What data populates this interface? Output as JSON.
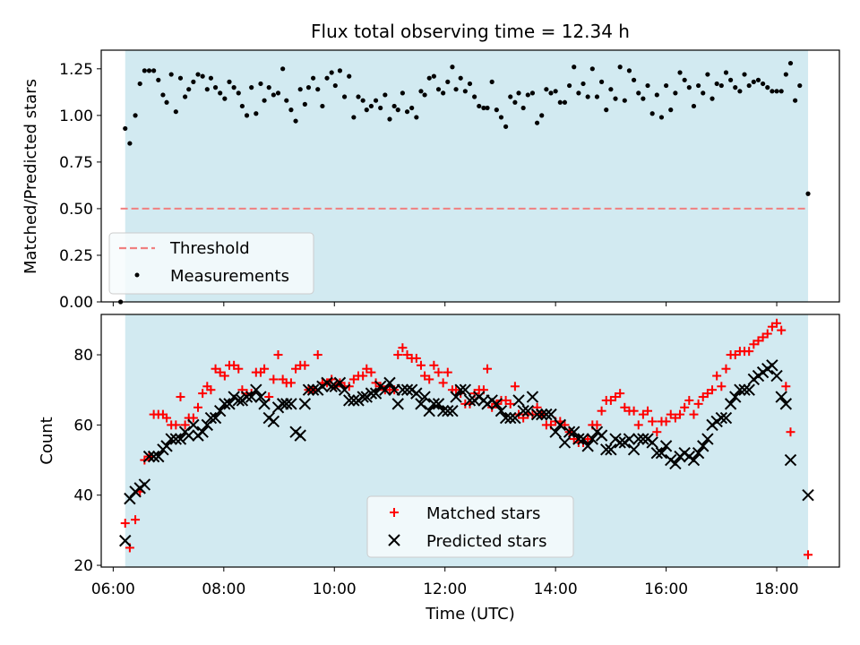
{
  "chart_data": [
    {
      "type": "scatter",
      "title": "Flux total observing time = 12.34 h",
      "xlabel": "",
      "ylabel": "Matched/Predicted stars",
      "xlim": [
        "05:47",
        "19:08"
      ],
      "ylim": [
        0,
        1.35
      ],
      "yticks": [
        "0.00",
        "0.25",
        "0.50",
        "0.75",
        "1.00",
        "1.25"
      ],
      "shaded_span": [
        "06:13",
        "18:34"
      ],
      "shade_color": "#add8e6",
      "threshold": {
        "name": "Threshold",
        "value": 0.5,
        "color": "#f08080"
      },
      "measurements_name": "Measurements",
      "legend_position": "lower-left",
      "points": [
        [
          "06:08",
          0.0
        ],
        [
          "06:13",
          0.93
        ],
        [
          "06:18",
          0.85
        ],
        [
          "06:24",
          1.0
        ],
        [
          "06:29",
          1.17
        ],
        [
          "06:34",
          1.24
        ],
        [
          "06:39",
          1.24
        ],
        [
          "06:44",
          1.24
        ],
        [
          "06:49",
          1.19
        ],
        [
          "06:54",
          1.11
        ],
        [
          "06:58",
          1.07
        ],
        [
          "07:03",
          1.22
        ],
        [
          "07:08",
          1.02
        ],
        [
          "07:13",
          1.2
        ],
        [
          "07:18",
          1.1
        ],
        [
          "07:22",
          1.14
        ],
        [
          "07:27",
          1.18
        ],
        [
          "07:32",
          1.22
        ],
        [
          "07:37",
          1.21
        ],
        [
          "07:42",
          1.14
        ],
        [
          "07:46",
          1.2
        ],
        [
          "07:51",
          1.15
        ],
        [
          "07:56",
          1.12
        ],
        [
          "08:01",
          1.09
        ],
        [
          "08:06",
          1.18
        ],
        [
          "08:11",
          1.15
        ],
        [
          "08:16",
          1.12
        ],
        [
          "08:20",
          1.05
        ],
        [
          "08:25",
          1.0
        ],
        [
          "08:30",
          1.15
        ],
        [
          "08:35",
          1.01
        ],
        [
          "08:40",
          1.17
        ],
        [
          "08:44",
          1.08
        ],
        [
          "08:49",
          1.15
        ],
        [
          "08:54",
          1.11
        ],
        [
          "08:59",
          1.12
        ],
        [
          "09:04",
          1.25
        ],
        [
          "09:08",
          1.08
        ],
        [
          "09:13",
          1.03
        ],
        [
          "09:18",
          0.97
        ],
        [
          "09:23",
          1.14
        ],
        [
          "09:28",
          1.06
        ],
        [
          "09:32",
          1.15
        ],
        [
          "09:37",
          1.2
        ],
        [
          "09:42",
          1.14
        ],
        [
          "09:47",
          1.05
        ],
        [
          "09:52",
          1.2
        ],
        [
          "09:57",
          1.23
        ],
        [
          "10:01",
          1.16
        ],
        [
          "10:06",
          1.24
        ],
        [
          "10:11",
          1.1
        ],
        [
          "10:16",
          1.21
        ],
        [
          "10:21",
          0.99
        ],
        [
          "10:26",
          1.1
        ],
        [
          "10:31",
          1.08
        ],
        [
          "10:35",
          1.03
        ],
        [
          "10:40",
          1.05
        ],
        [
          "10:45",
          1.08
        ],
        [
          "10:50",
          1.04
        ],
        [
          "10:55",
          1.11
        ],
        [
          "11:00",
          0.98
        ],
        [
          "11:05",
          1.05
        ],
        [
          "11:09",
          1.03
        ],
        [
          "11:14",
          1.12
        ],
        [
          "11:19",
          1.02
        ],
        [
          "11:24",
          1.04
        ],
        [
          "11:29",
          0.99
        ],
        [
          "11:34",
          1.13
        ],
        [
          "11:38",
          1.11
        ],
        [
          "11:43",
          1.2
        ],
        [
          "11:48",
          1.21
        ],
        [
          "11:53",
          1.14
        ],
        [
          "11:58",
          1.12
        ],
        [
          "12:03",
          1.18
        ],
        [
          "12:08",
          1.26
        ],
        [
          "12:12",
          1.14
        ],
        [
          "12:17",
          1.2
        ],
        [
          "12:22",
          1.13
        ],
        [
          "12:27",
          1.17
        ],
        [
          "12:32",
          1.1
        ],
        [
          "12:37",
          1.05
        ],
        [
          "12:42",
          1.04
        ],
        [
          "12:46",
          1.04
        ],
        [
          "12:51",
          1.18
        ],
        [
          "12:56",
          1.03
        ],
        [
          "13:01",
          0.99
        ],
        [
          "13:06",
          0.94
        ],
        [
          "13:11",
          1.1
        ],
        [
          "13:16",
          1.07
        ],
        [
          "13:20",
          1.12
        ],
        [
          "13:25",
          1.04
        ],
        [
          "13:30",
          1.11
        ],
        [
          "13:35",
          1.12
        ],
        [
          "13:40",
          0.96
        ],
        [
          "13:45",
          1.0
        ],
        [
          "13:50",
          1.14
        ],
        [
          "13:55",
          1.12
        ],
        [
          "14:00",
          1.13
        ],
        [
          "14:05",
          1.07
        ],
        [
          "14:10",
          1.07
        ],
        [
          "14:15",
          1.16
        ],
        [
          "14:20",
          1.26
        ],
        [
          "14:25",
          1.12
        ],
        [
          "14:30",
          1.17
        ],
        [
          "14:35",
          1.1
        ],
        [
          "14:40",
          1.25
        ],
        [
          "14:45",
          1.1
        ],
        [
          "14:50",
          1.18
        ],
        [
          "14:55",
          1.03
        ],
        [
          "15:00",
          1.14
        ],
        [
          "15:05",
          1.09
        ],
        [
          "15:10",
          1.26
        ],
        [
          "15:15",
          1.08
        ],
        [
          "15:20",
          1.24
        ],
        [
          "15:25",
          1.19
        ],
        [
          "15:30",
          1.12
        ],
        [
          "15:35",
          1.09
        ],
        [
          "15:40",
          1.16
        ],
        [
          "15:45",
          1.01
        ],
        [
          "15:50",
          1.11
        ],
        [
          "15:55",
          0.99
        ],
        [
          "16:00",
          1.16
        ],
        [
          "16:05",
          1.03
        ],
        [
          "16:10",
          1.12
        ],
        [
          "16:15",
          1.23
        ],
        [
          "16:20",
          1.19
        ],
        [
          "16:25",
          1.15
        ],
        [
          "16:30",
          1.05
        ],
        [
          "16:35",
          1.16
        ],
        [
          "16:40",
          1.12
        ],
        [
          "16:45",
          1.22
        ],
        [
          "16:50",
          1.09
        ],
        [
          "16:55",
          1.17
        ],
        [
          "17:00",
          1.16
        ],
        [
          "17:05",
          1.23
        ],
        [
          "17:10",
          1.19
        ],
        [
          "17:15",
          1.15
        ],
        [
          "17:20",
          1.13
        ],
        [
          "17:25",
          1.22
        ],
        [
          "17:30",
          1.16
        ],
        [
          "17:35",
          1.18
        ],
        [
          "17:40",
          1.19
        ],
        [
          "17:45",
          1.17
        ],
        [
          "17:50",
          1.15
        ],
        [
          "17:55",
          1.13
        ],
        [
          "18:00",
          1.13
        ],
        [
          "18:05",
          1.13
        ],
        [
          "18:10",
          1.22
        ],
        [
          "18:15",
          1.28
        ],
        [
          "18:20",
          1.08
        ],
        [
          "18:25",
          1.16
        ],
        [
          "18:34",
          0.58
        ]
      ]
    },
    {
      "type": "scatter",
      "title": "",
      "xlabel": "Time (UTC)",
      "ylabel": "Count",
      "xlim": [
        "05:47",
        "19:08"
      ],
      "ylim": [
        19.5,
        91.5
      ],
      "xticks": [
        "06:00",
        "08:00",
        "10:00",
        "12:00",
        "14:00",
        "16:00",
        "18:00"
      ],
      "yticks": [
        "20",
        "40",
        "60",
        "80"
      ],
      "shaded_span": [
        "06:13",
        "18:34"
      ],
      "shade_color": "#add8e6",
      "legend_position": "lower-center",
      "series": [
        {
          "name": "Matched stars",
          "marker": "plus",
          "color": "#ff0000",
          "values": [
            32,
            25,
            33,
            41,
            50,
            51,
            63,
            63,
            63,
            62,
            60,
            60,
            68,
            60,
            62,
            62,
            65,
            69,
            71,
            70,
            76,
            75,
            74,
            77,
            77,
            76,
            70,
            69,
            69,
            75,
            75,
            76,
            68,
            73,
            80,
            73,
            72,
            72,
            76,
            77,
            77,
            70,
            70,
            80,
            72,
            72,
            73,
            71,
            72,
            71,
            71,
            73,
            74,
            74,
            76,
            75,
            72,
            71,
            70,
            70,
            70,
            80,
            82,
            80,
            79,
            79,
            77,
            74,
            73,
            77,
            75,
            72,
            75,
            70,
            70,
            69,
            66,
            66,
            69,
            70,
            70,
            76,
            65,
            66,
            67,
            67,
            66,
            71,
            63,
            62,
            63,
            63,
            65,
            63,
            60,
            60,
            61,
            61,
            60,
            58,
            56,
            55,
            55,
            56,
            60,
            60,
            64,
            67,
            67,
            68,
            69,
            65,
            64,
            64,
            60,
            63,
            64,
            61,
            58,
            61,
            61,
            63,
            62,
            63,
            65,
            67,
            63,
            66,
            68,
            69,
            70,
            74,
            71,
            76,
            80,
            80,
            81,
            81,
            81,
            83,
            84,
            85,
            86,
            88,
            89,
            87,
            71,
            58,
            23
          ]
        },
        {
          "name": "Predicted stars",
          "marker": "x",
          "color": "#000000",
          "values": [
            27,
            39,
            41,
            42,
            43,
            51,
            51,
            51,
            53,
            54,
            56,
            56,
            56,
            58,
            57,
            60,
            57,
            58,
            60,
            62,
            62,
            64,
            66,
            66,
            68,
            67,
            67,
            68,
            68,
            70,
            68,
            66,
            62,
            61,
            65,
            66,
            66,
            66,
            58,
            57,
            66,
            70,
            70,
            70,
            71,
            72,
            71,
            71,
            72,
            70,
            67,
            67,
            67,
            68,
            68,
            69,
            69,
            71,
            70,
            72,
            70,
            66,
            70,
            70,
            70,
            69,
            66,
            68,
            64,
            66,
            66,
            64,
            64,
            64,
            68,
            70,
            70,
            67,
            67,
            68,
            67,
            66,
            67,
            66,
            64,
            62,
            62,
            62,
            67,
            64,
            64,
            68,
            63,
            63,
            63,
            63,
            58,
            60,
            55,
            58,
            58,
            56,
            56,
            54,
            56,
            58,
            57,
            53,
            53,
            56,
            55,
            55,
            56,
            53,
            56,
            56,
            56,
            55,
            52,
            52,
            54,
            50,
            49,
            51,
            52,
            51,
            50,
            52,
            54,
            56,
            60,
            61,
            62,
            62,
            66,
            68,
            70,
            70,
            70,
            73,
            74,
            75,
            76,
            77,
            74,
            68,
            66,
            50,
            40
          ]
        }
      ],
      "x_times": [
        "06:13",
        "06:18",
        "06:24",
        "06:29",
        "06:34",
        "06:39",
        "06:44",
        "06:49",
        "06:54",
        "06:58",
        "07:03",
        "07:08",
        "07:13",
        "07:18",
        "07:22",
        "07:27",
        "07:32",
        "07:37",
        "07:42",
        "07:46",
        "07:51",
        "07:56",
        "08:01",
        "08:06",
        "08:11",
        "08:16",
        "08:20",
        "08:25",
        "08:30",
        "08:35",
        "08:40",
        "08:44",
        "08:49",
        "08:54",
        "08:59",
        "09:04",
        "09:08",
        "09:13",
        "09:18",
        "09:23",
        "09:28",
        "09:32",
        "09:37",
        "09:42",
        "09:47",
        "09:52",
        "09:57",
        "10:01",
        "10:06",
        "10:11",
        "10:16",
        "10:21",
        "10:26",
        "10:31",
        "10:35",
        "10:40",
        "10:45",
        "10:50",
        "10:55",
        "11:00",
        "11:05",
        "11:09",
        "11:14",
        "11:19",
        "11:24",
        "11:29",
        "11:34",
        "11:38",
        "11:43",
        "11:48",
        "11:53",
        "11:58",
        "12:03",
        "12:08",
        "12:12",
        "12:17",
        "12:22",
        "12:27",
        "12:32",
        "12:37",
        "12:42",
        "12:46",
        "12:51",
        "12:56",
        "13:01",
        "13:06",
        "13:11",
        "13:16",
        "13:20",
        "13:25",
        "13:30",
        "13:35",
        "13:40",
        "13:45",
        "13:50",
        "13:55",
        "14:00",
        "14:05",
        "14:10",
        "14:15",
        "14:20",
        "14:25",
        "14:30",
        "14:35",
        "14:40",
        "14:45",
        "14:50",
        "14:55",
        "15:00",
        "15:05",
        "15:10",
        "15:15",
        "15:20",
        "15:25",
        "15:30",
        "15:35",
        "15:40",
        "15:45",
        "15:50",
        "15:55",
        "16:00",
        "16:05",
        "16:10",
        "16:15",
        "16:20",
        "16:25",
        "16:30",
        "16:35",
        "16:40",
        "16:45",
        "16:50",
        "16:55",
        "17:00",
        "17:05",
        "17:10",
        "17:15",
        "17:20",
        "17:25",
        "17:30",
        "17:35",
        "17:40",
        "17:45",
        "17:50",
        "17:55",
        "18:00",
        "18:05",
        "18:10",
        "18:15",
        "18:34"
      ]
    }
  ]
}
